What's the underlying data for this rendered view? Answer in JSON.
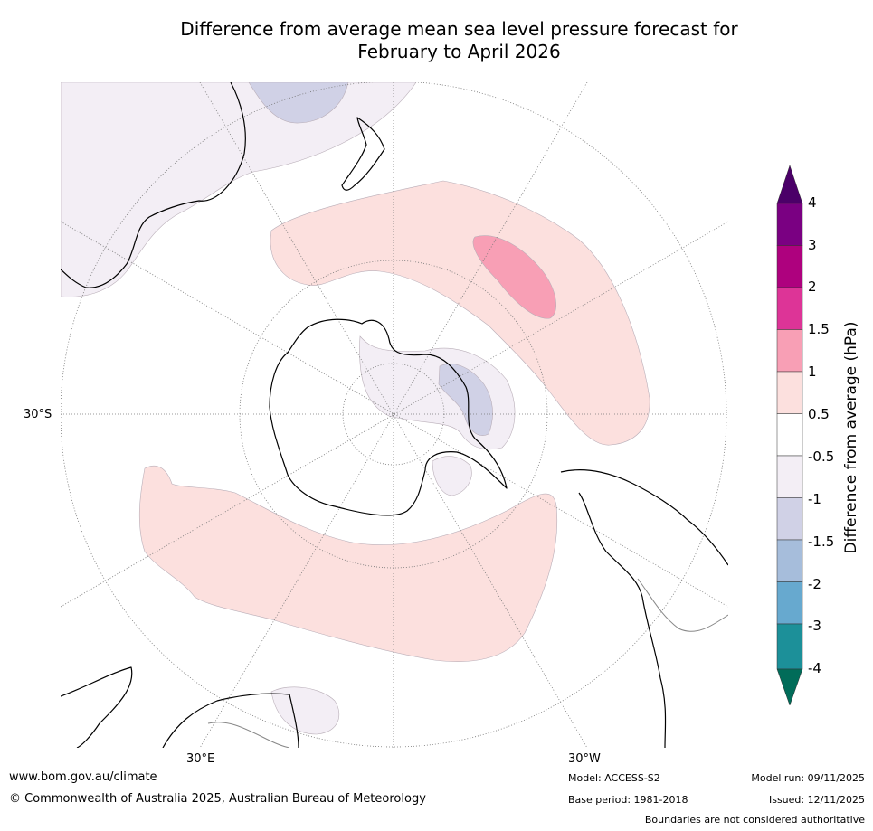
{
  "title": {
    "line1": "Difference from average mean sea level pressure forecast for",
    "line2": "February to April 2026"
  },
  "map": {
    "projection": "south-polar-stereographic",
    "lat_labels": [
      "30°S"
    ],
    "lon_labels": [
      "30°E",
      "30°W"
    ],
    "anomaly_regions": [
      {
        "name": "pacific-positive-band",
        "class": "0.5 to 1"
      },
      {
        "name": "pacific-core",
        "class": "1 to 1.5"
      },
      {
        "name": "indian-ocean-positive-band",
        "class": "0.5 to 1"
      },
      {
        "name": "australia-negative",
        "class": "-1 to -0.5"
      },
      {
        "name": "tasman-negative-core",
        "class": "-1.5 to -1"
      },
      {
        "name": "antarctic-negative",
        "class": "-1 to -0.5"
      },
      {
        "name": "weddell-negative-core",
        "class": "-1.5 to -1"
      },
      {
        "name": "africa-negative",
        "class": "-1 to -0.5"
      }
    ]
  },
  "colorbar": {
    "title": "Difference from average (hPa)",
    "ticks": [
      "4",
      "3",
      "2",
      "1.5",
      "1",
      "0.5",
      "-0.5",
      "-1",
      "-1.5",
      "-2",
      "-3",
      "-4"
    ],
    "colors": {
      "gt4": "#4b0068",
      "b3_4": "#7a0082",
      "b2_3": "#ae017e",
      "b15_2": "#dd3497",
      "b1_15": "#f89fb5",
      "b05_1": "#fce0de",
      "neutral": "#ffffff",
      "n05_1": "#f3eef5",
      "n1_15": "#d0d1e6",
      "n15_2": "#a6bddb",
      "n2_3": "#67a9cf",
      "n3_4": "#1c9099",
      "lt4": "#016c59"
    }
  },
  "footer": {
    "website": "www.bom.gov.au/climate",
    "copyright": "© Commonwealth of Australia 2025, Australian Bureau of Meteorology",
    "model": "Model: ACCESS-S2",
    "base_period": "Base period: 1981-2018",
    "model_run": "Model run: 09/11/2025",
    "issued": "Issued: 12/11/2025",
    "disclaimer": "Boundaries are not considered authoritative"
  }
}
